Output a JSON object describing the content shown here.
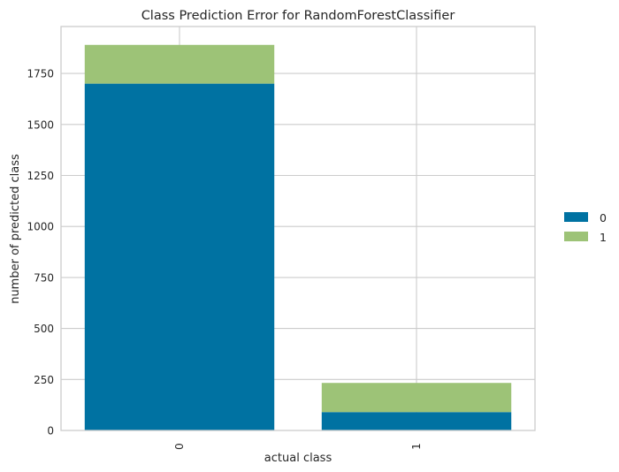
{
  "chart_data": {
    "type": "bar",
    "stacked": true,
    "title": "Class Prediction Error for RandomForestClassifier",
    "xlabel": "actual class",
    "ylabel": "number of predicted class",
    "categories": [
      "0",
      "1"
    ],
    "series": [
      {
        "name": "0",
        "values": [
          1700,
          90
        ],
        "color": "#0072A2"
      },
      {
        "name": "1",
        "values": [
          190,
          143
        ],
        "color": "#9DC377"
      }
    ],
    "ylim": [
      0,
      1980
    ],
    "yticks": [
      0,
      250,
      500,
      750,
      1000,
      1250,
      1500,
      1750
    ],
    "grid": true,
    "legend_position": "right",
    "colors": {
      "grid": "#CCCCCC",
      "frame": "#CCCCCC",
      "text": "#262626"
    }
  }
}
